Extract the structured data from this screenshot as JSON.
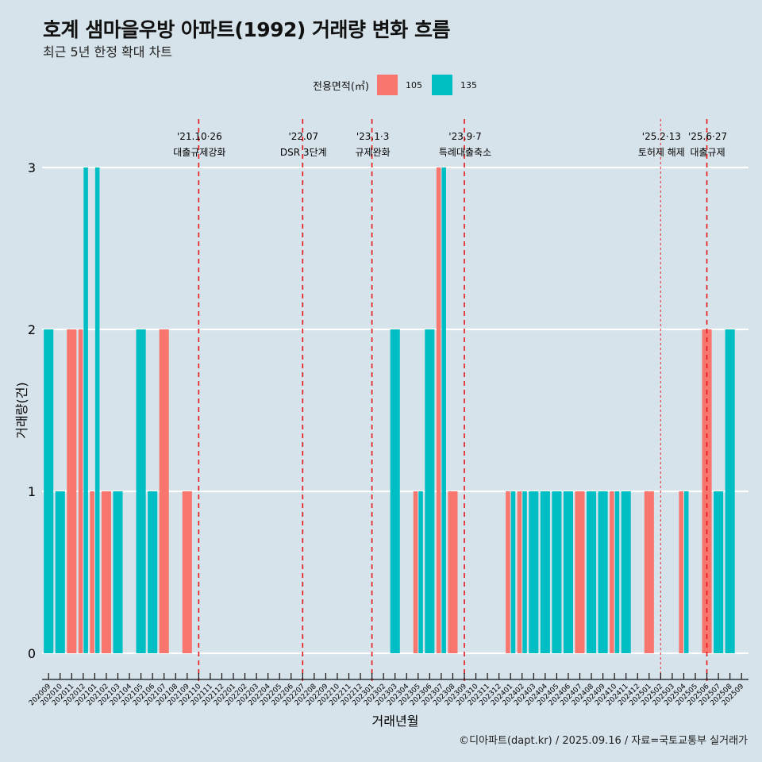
{
  "title": "호계 샘마을우방 아파트(1992) 거래량 변화 흐름",
  "subtitle": "최근 5년 한정 확대 차트",
  "footer": "©디아파트(dapt.kr) / 2025.09.16 / 자료=국토교통부 실거래가",
  "legend": {
    "title": "전용면적(㎡)",
    "items": [
      {
        "label": "105",
        "color": "#f8766d"
      },
      {
        "label": "135",
        "color": "#00bfc4"
      }
    ]
  },
  "chart_data": {
    "type": "bar",
    "title": "호계 샘마을우방 아파트(1992) 거래량 변화 흐름",
    "subtitle": "최근 5년 한정 확대 차트",
    "xlabel": "거래년월",
    "ylabel": "거래량(건)",
    "ylim": [
      0,
      3
    ],
    "yticks": [
      "0",
      "1",
      "2",
      "3"
    ],
    "grid": "horizontal major",
    "legend_position": "top",
    "categories": [
      "202009",
      "202010",
      "202011",
      "202012",
      "202101",
      "202102",
      "202103",
      "202104",
      "202105",
      "202106",
      "202107",
      "202108",
      "202109",
      "202110",
      "202111",
      "202112",
      "202201",
      "202202",
      "202203",
      "202204",
      "202205",
      "202206",
      "202207",
      "202208",
      "202209",
      "202210",
      "202211",
      "202212",
      "202301",
      "202302",
      "202303",
      "202304",
      "202305",
      "202306",
      "202307",
      "202308",
      "202309",
      "202310",
      "202311",
      "202312",
      "202401",
      "202402",
      "202403",
      "202404",
      "202405",
      "202406",
      "202407",
      "202408",
      "202409",
      "202410",
      "202411",
      "202412",
      "202501",
      "202502",
      "202503",
      "202504",
      "202505",
      "202506",
      "202507",
      "202508",
      "202509"
    ],
    "series": [
      {
        "name": "105",
        "color": "#f8766d",
        "values": [
          0,
          0,
          2,
          2,
          1,
          1,
          0,
          0,
          0,
          0,
          2,
          0,
          1,
          0,
          0,
          0,
          0,
          0,
          0,
          0,
          0,
          0,
          0,
          0,
          0,
          0,
          0,
          0,
          0,
          0,
          0,
          0,
          1,
          0,
          3,
          1,
          0,
          0,
          0,
          0,
          1,
          1,
          0,
          0,
          0,
          0,
          1,
          0,
          0,
          1,
          0,
          0,
          1,
          0,
          0,
          1,
          0,
          2,
          0,
          0,
          0
        ]
      },
      {
        "name": "135",
        "color": "#00bfc4",
        "values": [
          2,
          1,
          0,
          3,
          3,
          0,
          1,
          0,
          2,
          1,
          0,
          0,
          0,
          0,
          0,
          0,
          0,
          0,
          0,
          0,
          0,
          0,
          0,
          0,
          0,
          0,
          0,
          0,
          0,
          0,
          2,
          0,
          1,
          2,
          3,
          0,
          0,
          0,
          0,
          0,
          1,
          1,
          1,
          1,
          1,
          1,
          0,
          1,
          1,
          1,
          1,
          0,
          0,
          0,
          0,
          1,
          0,
          0,
          1,
          2,
          0
        ]
      }
    ],
    "annotations": [
      {
        "date": "'21.10·26",
        "label": "대출규제강화",
        "at": "202110",
        "style": "dashed"
      },
      {
        "date": "'22.07",
        "label": "DSR 3단계",
        "at": "202207",
        "style": "dashed"
      },
      {
        "date": "'23.1·3",
        "label": "규제완화",
        "at": "202301",
        "style": "dashed"
      },
      {
        "date": "'23.9·7",
        "label": "특례대출축소",
        "at": "202309",
        "style": "dashed"
      },
      {
        "date": "'25.2·13",
        "label": "토허제 해제",
        "at": "202502",
        "style": "dotted"
      },
      {
        "date": "'25.6·27",
        "label": "대출규제",
        "at": "202506",
        "style": "dashed"
      }
    ],
    "line_color": "#e8151b"
  }
}
